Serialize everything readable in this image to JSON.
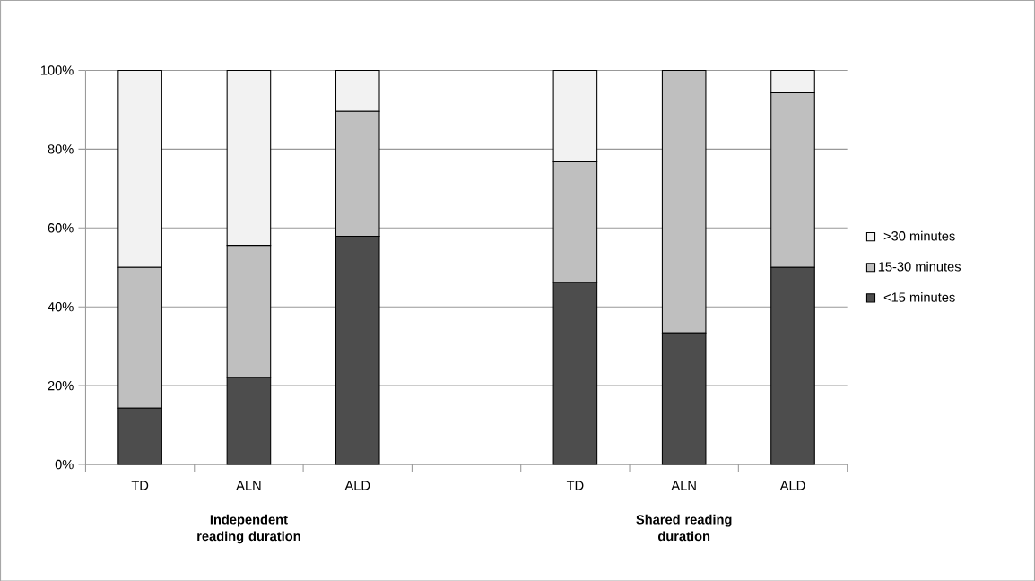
{
  "chart_data": {
    "type": "bar",
    "stacked": true,
    "categories": [
      "TD",
      "ALN",
      "ALD",
      null,
      "TD",
      "ALN",
      "ALD"
    ],
    "series": [
      {
        "name": "<15 minutes",
        "color": "#4d4d4d",
        "values": [
          14.3,
          22.1,
          57.9,
          null,
          46.2,
          33.4,
          50.0
        ]
      },
      {
        "name": "15-30 minutes",
        "color": "#bfbfbf",
        "values": [
          35.7,
          33.5,
          31.7,
          null,
          30.6,
          66.6,
          44.3
        ]
      },
      {
        "name": ">30 minutes",
        "color": "#f2f2f2",
        "values": [
          50.0,
          44.4,
          10.4,
          null,
          23.2,
          0,
          5.7
        ]
      }
    ],
    "ylim": [
      0,
      100
    ],
    "yticks": [
      {
        "value": 0,
        "label": "0%"
      },
      {
        "value": 20,
        "label": "20%"
      },
      {
        "value": 40,
        "label": "40%"
      },
      {
        "value": 60,
        "label": "60%"
      },
      {
        "value": 80,
        "label": "80%"
      },
      {
        "value": 100,
        "label": "100%"
      }
    ],
    "grid": "y",
    "legend": "right",
    "annotations": [
      "Independent reading duration",
      "Shared reading duration"
    ]
  }
}
